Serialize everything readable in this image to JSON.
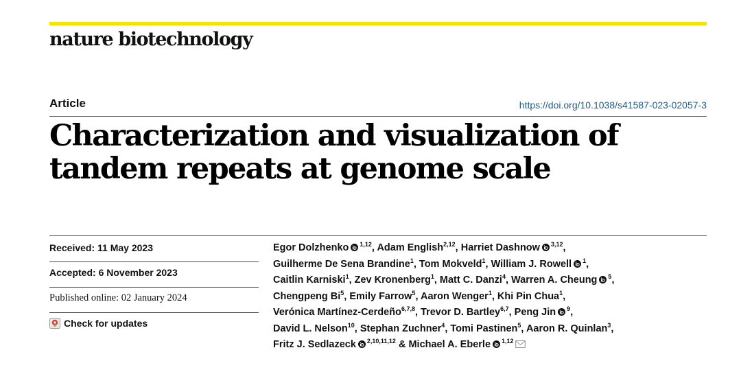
{
  "journal": {
    "name": "nature biotechnology",
    "accent_color": "#f5e300"
  },
  "article": {
    "type": "Article",
    "doi": "https://doi.org/10.1038/s41587-023-02057-3",
    "title_line1": "Characterization and visualization of",
    "title_line2": "tandem repeats at genome scale"
  },
  "meta": {
    "received": "Received: 11 May 2023",
    "accepted": "Accepted: 6 November 2023",
    "published": "Published online: 02 January 2024",
    "check_updates": "Check for updates"
  },
  "authors": {
    "lines": [
      [
        {
          "name": "Egor Dolzhenko",
          "orcid": true,
          "aff": "1,12",
          "sep": ", "
        },
        {
          "name": "Adam English",
          "orcid": false,
          "aff": "2,12",
          "sep": ", "
        },
        {
          "name": "Harriet Dashnow",
          "orcid": true,
          "aff": "3,12",
          "sep": ","
        }
      ],
      [
        {
          "name": "Guilherme De Sena Brandine",
          "orcid": false,
          "aff": "1",
          "sep": ", "
        },
        {
          "name": "Tom Mokveld",
          "orcid": false,
          "aff": "1",
          "sep": ", "
        },
        {
          "name": "William J. Rowell",
          "orcid": true,
          "aff": "1",
          "sep": ","
        }
      ],
      [
        {
          "name": "Caitlin Karniski",
          "orcid": false,
          "aff": "1",
          "sep": ", "
        },
        {
          "name": "Zev Kronenberg",
          "orcid": false,
          "aff": "1",
          "sep": ", "
        },
        {
          "name": "Matt C. Danzi",
          "orcid": false,
          "aff": "4",
          "sep": ", "
        },
        {
          "name": "Warren A. Cheung",
          "orcid": true,
          "aff": "5",
          "sep": ","
        }
      ],
      [
        {
          "name": "Chengpeng Bi",
          "orcid": false,
          "aff": "5",
          "sep": ", "
        },
        {
          "name": "Emily Farrow",
          "orcid": false,
          "aff": "5",
          "sep": ", "
        },
        {
          "name": "Aaron Wenger",
          "orcid": false,
          "aff": "1",
          "sep": ", "
        },
        {
          "name": "Khi Pin Chua",
          "orcid": false,
          "aff": "1",
          "sep": ","
        }
      ],
      [
        {
          "name": "Verónica Martínez-Cerdeño",
          "orcid": false,
          "aff": "6,7,8",
          "sep": ", "
        },
        {
          "name": "Trevor D. Bartley",
          "orcid": false,
          "aff": "6,7",
          "sep": ", "
        },
        {
          "name": "Peng Jin",
          "orcid": true,
          "aff": "9",
          "sep": ","
        }
      ],
      [
        {
          "name": "David L. Nelson",
          "orcid": false,
          "aff": "10",
          "sep": ", "
        },
        {
          "name": "Stephan Zuchner",
          "orcid": false,
          "aff": "4",
          "sep": ", "
        },
        {
          "name": "Tomi Pastinen",
          "orcid": false,
          "aff": "5",
          "sep": ", "
        },
        {
          "name": "Aaron R. Quinlan",
          "orcid": false,
          "aff": "3",
          "sep": ","
        }
      ],
      [
        {
          "name": "Fritz J. Sedlazeck",
          "orcid": true,
          "aff": "2,10,11,12",
          "sep": " & "
        },
        {
          "name": "Michael A. Eberle",
          "orcid": true,
          "aff": "1,12",
          "sep": "",
          "mail": true
        }
      ]
    ]
  }
}
